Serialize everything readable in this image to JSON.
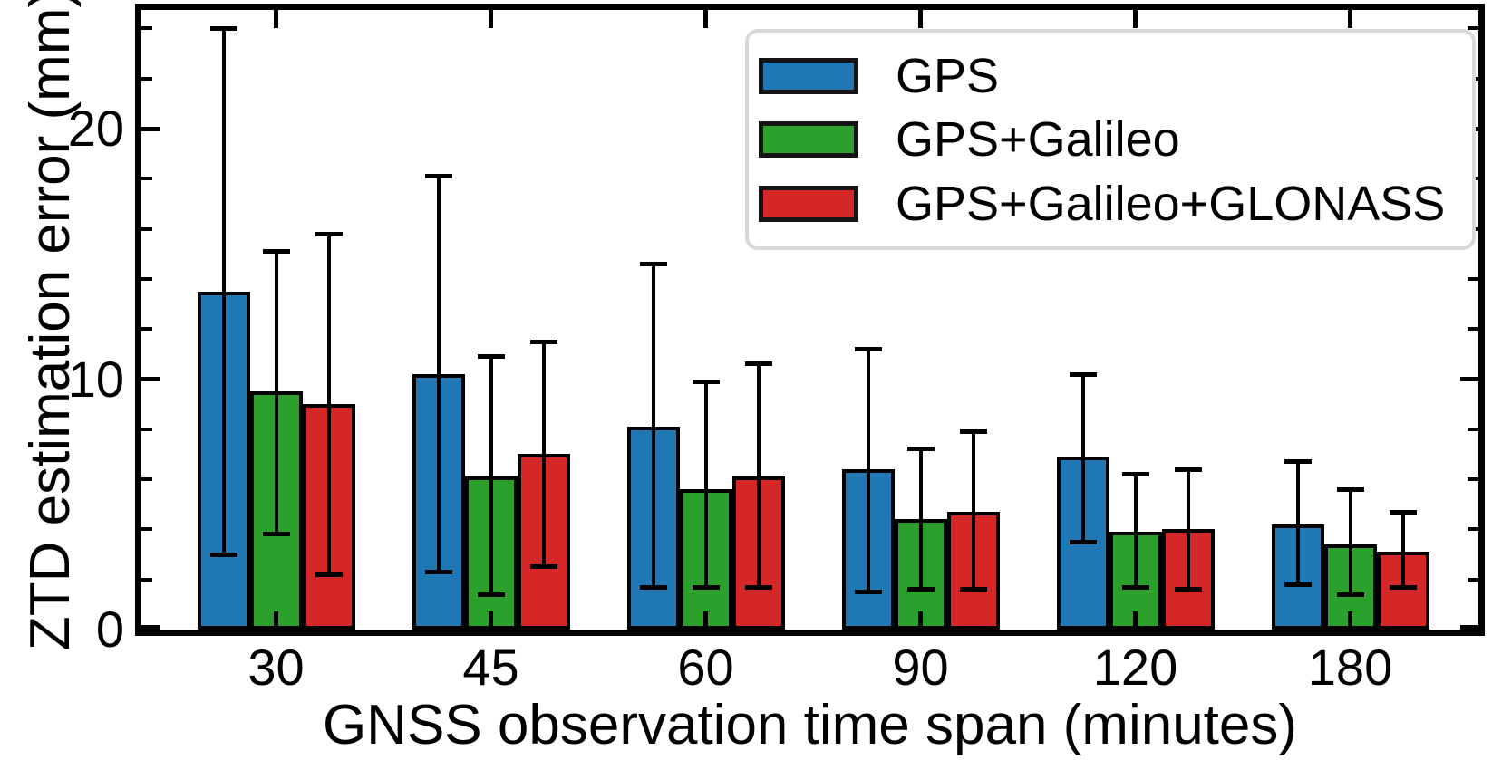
{
  "figure": {
    "background": "#ffffff",
    "plot_border_color": "#000000"
  },
  "chart_data": {
    "type": "bar",
    "title": "",
    "xlabel": "GNSS observation time span (minutes)",
    "ylabel": "ZTD estimation error (mm)",
    "categories": [
      "30",
      "45",
      "60",
      "90",
      "120",
      "180"
    ],
    "ylim": [
      0,
      24.74
    ],
    "y_ticks_major": [
      0,
      10,
      20
    ],
    "y_minor_step": 2,
    "grid": false,
    "legend_position": "upper right",
    "error_bar_color": "#000000",
    "bar_edge_color": "#000000",
    "series": [
      {
        "name": "GPS",
        "color": "#1f77b4",
        "values": [
          13.5,
          10.2,
          8.1,
          6.4,
          6.9,
          4.2
        ],
        "err_low": [
          3.0,
          2.3,
          1.7,
          1.5,
          3.5,
          1.8
        ],
        "err_high": [
          24.0,
          18.1,
          14.6,
          11.2,
          10.2,
          6.7
        ]
      },
      {
        "name": "GPS+Galileo",
        "color": "#2ca02c",
        "values": [
          9.5,
          6.1,
          5.6,
          4.4,
          3.9,
          3.4
        ],
        "err_low": [
          3.8,
          1.4,
          1.7,
          1.6,
          1.7,
          1.4
        ],
        "err_high": [
          15.1,
          10.9,
          9.9,
          7.2,
          6.2,
          5.6
        ]
      },
      {
        "name": "GPS+Galileo+GLONASS",
        "color": "#d62728",
        "values": [
          9.0,
          7.0,
          6.1,
          4.7,
          4.0,
          3.1
        ],
        "err_low": [
          2.2,
          2.5,
          1.7,
          1.6,
          1.6,
          1.7
        ],
        "err_high": [
          15.8,
          11.5,
          10.6,
          7.9,
          6.4,
          4.7
        ]
      }
    ]
  }
}
